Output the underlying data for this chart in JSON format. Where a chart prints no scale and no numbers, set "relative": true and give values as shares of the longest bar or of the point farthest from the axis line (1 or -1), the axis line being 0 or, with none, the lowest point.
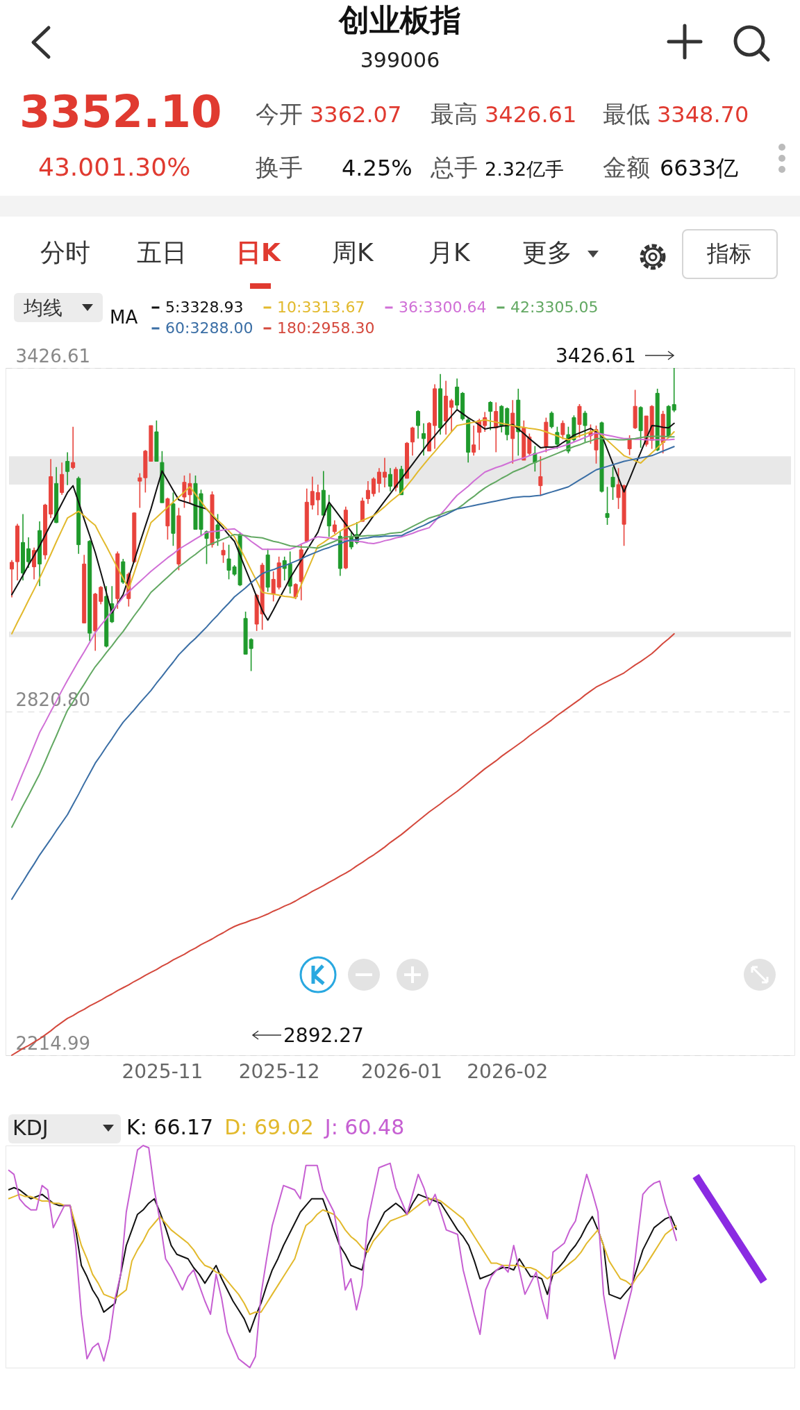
{
  "chart_data": [
    {
      "type": "candlestick",
      "title": "创业板指",
      "subtitle": "399006",
      "legend_title": "MA",
      "legend": "top left",
      "grid": "y",
      "categories": [
        null,
        null,
        null,
        null,
        null,
        null,
        null,
        null,
        null,
        null,
        null,
        null,
        null,
        null,
        null,
        null,
        null,
        null,
        null,
        null,
        null,
        null,
        null,
        null,
        null,
        null,
        null,
        "2025-11",
        null,
        null,
        null,
        null,
        null,
        null,
        null,
        null,
        null,
        null,
        null,
        null,
        null,
        null,
        null,
        null,
        null,
        null,
        null,
        null,
        "2025-12",
        null,
        null,
        null,
        null,
        null,
        null,
        null,
        null,
        null,
        null,
        null,
        null,
        null,
        null,
        null,
        null,
        null,
        null,
        null,
        null,
        null,
        "2026-01",
        null,
        null,
        null,
        null,
        null,
        null,
        null,
        null,
        null,
        null,
        null,
        null,
        null,
        null,
        null,
        null,
        null,
        null,
        "2026-02",
        null,
        null,
        null,
        null,
        null,
        null,
        null,
        null,
        null,
        null,
        null,
        null,
        null,
        null,
        null,
        null,
        null,
        null,
        null,
        null,
        null,
        null,
        null,
        null,
        null,
        null,
        null,
        null,
        null,
        null
      ],
      "ylim": [
        2214.99,
        3426.61
      ],
      "yticks": [
        2214.99,
        {
          "value": 2820.8,
          "label": "2820.80"
        },
        3426.61
      ],
      "ohlc": [
        [
          3072,
          3088,
          3022,
          3084
        ],
        [
          3085,
          3152,
          3052,
          3148
        ],
        [
          3119,
          3169,
          3052,
          3065
        ],
        [
          3108,
          3128,
          3074,
          3085
        ],
        [
          3076,
          3110,
          3054,
          3105
        ],
        [
          3140,
          3156,
          3042,
          3081
        ],
        [
          3097,
          3187,
          3089,
          3185
        ],
        [
          3169,
          3266,
          3162,
          3235
        ],
        [
          3223,
          3252,
          3153,
          3154
        ],
        [
          3207,
          3260,
          3203,
          3239
        ],
        [
          3262,
          3278,
          3220,
          3244
        ],
        [
          3251,
          3323,
          3248,
          3260
        ],
        [
          3232,
          3235,
          3099,
          3115
        ],
        [
          2977,
          3097,
          2977,
          3081
        ],
        [
          3121,
          3123,
          2945,
          2959
        ],
        [
          2963,
          3030,
          2928,
          3028
        ],
        [
          3015,
          3042,
          3010,
          3040
        ],
        [
          3024,
          3042,
          2934,
          2936
        ],
        [
          3011,
          3042,
          2977,
          2979
        ],
        [
          3020,
          3103,
          3002,
          3099
        ],
        [
          3085,
          3090,
          3046,
          3049
        ],
        [
          3020,
          3066,
          3006,
          3063
        ],
        [
          3085,
          3172,
          3083,
          3171
        ],
        [
          3227,
          3241,
          3180,
          3233
        ],
        [
          3233,
          3282,
          3207,
          3280
        ],
        [
          3262,
          3325,
          3262,
          3325
        ],
        [
          3314,
          3334,
          3262,
          3262
        ],
        [
          3260,
          3280,
          3189,
          3189
        ],
        [
          3148,
          3198,
          3124,
          3196
        ],
        [
          3187,
          3207,
          3113,
          3135
        ],
        [
          3081,
          3180,
          3070,
          3166
        ],
        [
          3199,
          3237,
          3180,
          3225
        ],
        [
          3203,
          3241,
          3187,
          3223
        ],
        [
          3223,
          3237,
          3142,
          3142
        ],
        [
          3205,
          3212,
          3131,
          3142
        ],
        [
          3138,
          3140,
          3081,
          3126
        ],
        [
          3115,
          3209,
          3110,
          3203
        ],
        [
          3150,
          3169,
          3113,
          3126
        ],
        [
          3097,
          3119,
          3083,
          3105
        ],
        [
          3090,
          3115,
          3054,
          3070
        ],
        [
          3076,
          3079,
          3060,
          3063
        ],
        [
          3133,
          3137,
          3042,
          3044
        ],
        [
          2985,
          2997,
          2922,
          2922
        ],
        [
          2948,
          2950,
          2892.27,
          2932
        ],
        [
          2975,
          3028,
          2963,
          3026
        ],
        [
          2993,
          3083,
          2965,
          3079
        ],
        [
          3097,
          3108,
          3032,
          3040
        ],
        [
          3028,
          3068,
          3015,
          3054
        ],
        [
          3040,
          3094,
          3036,
          3083
        ],
        [
          3087,
          3094,
          3052,
          3073
        ],
        [
          3081,
          3103,
          3029,
          3042
        ],
        [
          3023,
          3047,
          3019,
          3045
        ],
        [
          3050,
          3115,
          3017,
          3106
        ],
        [
          3121,
          3214,
          3119,
          3190
        ],
        [
          3185,
          3235,
          3177,
          3209
        ],
        [
          3194,
          3221,
          3167,
          3207
        ],
        [
          3211,
          3245,
          3167,
          3167
        ],
        [
          3185,
          3203,
          3129,
          3148
        ],
        [
          3138,
          3158,
          3134,
          3150
        ],
        [
          3130,
          3140,
          3060,
          3073
        ],
        [
          3074,
          3182,
          3072,
          3176
        ],
        [
          3130,
          3138,
          3107,
          3111
        ],
        [
          3133,
          3155,
          3116,
          3119
        ],
        [
          3156,
          3198,
          3156,
          3192
        ],
        [
          3196,
          3227,
          3187,
          3211
        ],
        [
          3205,
          3234,
          3200,
          3231
        ],
        [
          3223,
          3250,
          3207,
          3243
        ],
        [
          3234,
          3268,
          3216,
          3243
        ],
        [
          3239,
          3250,
          3209,
          3218
        ],
        [
          3216,
          3252,
          3209,
          3248
        ],
        [
          3248,
          3254,
          3203,
          3203
        ],
        [
          3232,
          3296,
          3232,
          3294
        ],
        [
          3296,
          3323,
          3272,
          3321
        ],
        [
          3350,
          3352,
          3302,
          3325
        ],
        [
          3311,
          3329,
          3272,
          3302
        ],
        [
          3280,
          3331,
          3280,
          3329
        ],
        [
          3325,
          3398,
          3284,
          3390
        ],
        [
          3390,
          3416,
          3309,
          3321
        ],
        [
          3333,
          3404,
          3309,
          3377
        ],
        [
          3357,
          3372,
          3313,
          3369
        ],
        [
          3393,
          3408,
          3354,
          3361
        ],
        [
          3382,
          3384,
          3334,
          3337
        ],
        [
          3335,
          3339,
          3260,
          3278
        ],
        [
          3278,
          3325,
          3272,
          3291
        ],
        [
          3313,
          3337,
          3282,
          3334
        ],
        [
          3325,
          3349,
          3314,
          3339
        ],
        [
          3366,
          3368,
          3317,
          3350
        ],
        [
          3321,
          3366,
          3278,
          3350
        ],
        [
          3359,
          3361,
          3313,
          3325
        ],
        [
          3355,
          3357,
          3299,
          3309
        ],
        [
          3302,
          3370,
          3258,
          3347
        ],
        [
          3370,
          3390,
          3272,
          3314
        ],
        [
          3264,
          3334,
          3264,
          3321
        ],
        [
          3276,
          3311,
          3273,
          3305
        ],
        [
          3276,
          3289,
          3244,
          3260
        ],
        [
          3219,
          3271,
          3201,
          3235
        ],
        [
          3288,
          3339,
          3278,
          3331
        ],
        [
          3347,
          3350,
          3320,
          3323
        ],
        [
          3313,
          3323,
          3284,
          3292
        ],
        [
          3309,
          3334,
          3301,
          3329
        ],
        [
          3309,
          3323,
          3276,
          3280
        ],
        [
          3339,
          3343,
          3296,
          3300
        ],
        [
          3327,
          3363,
          3304,
          3359
        ],
        [
          3347,
          3351,
          3296,
          3325
        ],
        [
          3307,
          3327,
          3293,
          3314
        ],
        [
          3282,
          3325,
          3258,
          3318
        ],
        [
          3330,
          3332,
          3207,
          3209
        ],
        [
          3170,
          3217,
          3150,
          3163
        ],
        [
          3234,
          3252,
          3194,
          3217
        ],
        [
          3198,
          3250,
          3178,
          3221
        ],
        [
          3151,
          3221,
          3113,
          3219
        ],
        [
          3284,
          3308,
          3273,
          3302
        ],
        [
          3321,
          3388,
          3319,
          3359
        ],
        [
          3357,
          3359,
          3286,
          3316
        ],
        [
          3292,
          3342,
          3288,
          3342
        ],
        [
          3299,
          3361,
          3284,
          3359
        ],
        [
          3382,
          3390,
          3280,
          3282
        ],
        [
          3295,
          3351,
          3276,
          3345
        ],
        [
          3359,
          3361,
          3304,
          3306
        ],
        [
          3362.07,
          3426.61,
          3348.7,
          3352.1
        ]
      ],
      "series": [
        {
          "name": "5:3328.93",
          "color": "#111111",
          "type": "line",
          "values": [
            3027,
            3044,
            3061,
            3079,
            3096,
            3113,
            3132,
            3151,
            3169,
            3188,
            3207,
            3219,
            3190,
            3160,
            3131,
            3101,
            3066,
            3030,
            2995,
            3011,
            3027,
            3057,
            3087,
            3118,
            3148,
            3178,
            3212,
            3245,
            3228,
            3211,
            3194,
            3191,
            3188,
            3184,
            3181,
            3178,
            3167,
            3155,
            3144,
            3132,
            3121,
            3097,
            3072,
            3048,
            3023,
            2999,
            2982,
            3000,
            3019,
            3037,
            3056,
            3072,
            3088,
            3105,
            3121,
            3137,
            3164,
            3190,
            3177,
            3164,
            3151,
            3138,
            3125,
            3139,
            3152,
            3166,
            3179,
            3192,
            3205,
            3218,
            3231,
            3244,
            3257,
            3270,
            3283,
            3296,
            3307,
            3319,
            3330,
            3342,
            3353,
            3346,
            3339,
            3333,
            3326,
            3319,
            3321,
            3322,
            3324,
            3325,
            3327,
            3319,
            3311,
            3302,
            3294,
            3286,
            3287,
            3287,
            3288,
            3295,
            3301,
            3308,
            3312,
            3316,
            3320,
            3314,
            3308,
            3283,
            3258,
            3233,
            3208,
            3231,
            3255,
            3278,
            3302,
            3325,
            3324,
            3322,
            3321,
            3329
          ]
        },
        {
          "name": "10:3313.67",
          "color": "#e2b92c",
          "type": "line",
          "values": [
            2958,
            2978,
            2997,
            3017,
            3036,
            3056,
            3077,
            3098,
            3120,
            3141,
            3162,
            3168,
            3174,
            3166,
            3157,
            3149,
            3130,
            3112,
            3093,
            3074,
            3056,
            3037,
            3066,
            3095,
            3125,
            3154,
            3163,
            3172,
            3181,
            3190,
            3199,
            3208,
            3217,
            3204,
            3191,
            3178,
            3168,
            3158,
            3149,
            3139,
            3129,
            3109,
            3090,
            3070,
            3051,
            3031,
            3029,
            3028,
            3026,
            3024,
            3023,
            3021,
            3044,
            3067,
            3090,
            3113,
            3119,
            3126,
            3132,
            3139,
            3145,
            3149,
            3153,
            3158,
            3162,
            3166,
            3174,
            3182,
            3191,
            3199,
            3207,
            3219,
            3231,
            3244,
            3256,
            3268,
            3279,
            3291,
            3302,
            3314,
            3325,
            3327,
            3329,
            3331,
            3333,
            3335,
            3333,
            3331,
            3329,
            3327,
            3325,
            3323,
            3322,
            3320,
            3319,
            3317,
            3314,
            3310,
            3307,
            3303,
            3300,
            3303,
            3307,
            3310,
            3314,
            3317,
            3308,
            3299,
            3290,
            3281,
            3272,
            3268,
            3263,
            3259,
            3268,
            3277,
            3286,
            3295,
            3304,
            3314
          ]
        },
        {
          "name": "36:3300.64",
          "color": "#d06fd6",
          "type": "line",
          "values": [
            2665,
            2689,
            2713,
            2736,
            2760,
            2784,
            2802,
            2821,
            2839,
            2858,
            2876,
            2893,
            2910,
            2926,
            2943,
            2960,
            2973,
            2985,
            2998,
            3010,
            3023,
            3032,
            3041,
            3050,
            3059,
            3068,
            3076,
            3084,
            3092,
            3099,
            3107,
            3113,
            3119,
            3125,
            3131,
            3137,
            3138,
            3139,
            3141,
            3142,
            3143,
            3136,
            3129,
            3121,
            3114,
            3107,
            3107,
            3107,
            3107,
            3107,
            3107,
            3111,
            3116,
            3120,
            3125,
            3129,
            3128,
            3127,
            3125,
            3124,
            3123,
            3122,
            3121,
            3120,
            3118,
            3117,
            3119,
            3122,
            3124,
            3127,
            3129,
            3132,
            3135,
            3139,
            3142,
            3145,
            3156,
            3168,
            3179,
            3191,
            3202,
            3210,
            3218,
            3227,
            3235,
            3243,
            3247,
            3251,
            3254,
            3258,
            3262,
            3265,
            3268,
            3272,
            3275,
            3278,
            3281,
            3284,
            3286,
            3289,
            3292,
            3296,
            3300,
            3304,
            3308,
            3312,
            3310,
            3308,
            3306,
            3304,
            3302,
            3302,
            3301,
            3301,
            3300,
            3300,
            3300,
            3300,
            3300,
            3301
          ]
        },
        {
          "name": "42:3305.05",
          "color": "#62a862",
          "type": "line",
          "values": [
            2617,
            2636,
            2655,
            2673,
            2692,
            2711,
            2733,
            2756,
            2778,
            2801,
            2823,
            2838,
            2854,
            2869,
            2885,
            2900,
            2912,
            2925,
            2937,
            2950,
            2962,
            2976,
            2990,
            3003,
            3017,
            3031,
            3040,
            3049,
            3058,
            3067,
            3076,
            3083,
            3091,
            3098,
            3106,
            3113,
            3117,
            3121,
            3125,
            3129,
            3133,
            3132,
            3131,
            3129,
            3128,
            3127,
            3124,
            3121,
            3119,
            3116,
            3113,
            3112,
            3111,
            3111,
            3110,
            3109,
            3113,
            3117,
            3121,
            3125,
            3129,
            3129,
            3130,
            3130,
            3131,
            3131,
            3132,
            3133,
            3135,
            3136,
            3137,
            3142,
            3147,
            3152,
            3157,
            3162,
            3165,
            3168,
            3172,
            3175,
            3178,
            3185,
            3193,
            3200,
            3208,
            3215,
            3221,
            3226,
            3232,
            3237,
            3243,
            3247,
            3251,
            3256,
            3260,
            3264,
            3268,
            3272,
            3276,
            3280,
            3284,
            3288,
            3291,
            3295,
            3298,
            3302,
            3302,
            3301,
            3301,
            3300,
            3300,
            3301,
            3302,
            3304,
            3305,
            3306,
            3306,
            3306,
            3305,
            3305
          ]
        },
        {
          "name": "60:3288.00",
          "color": "#3a6ea5",
          "type": "line",
          "values": [
            2490,
            2506,
            2521,
            2537,
            2552,
            2568,
            2582,
            2596,
            2611,
            2625,
            2639,
            2657,
            2675,
            2694,
            2712,
            2730,
            2744,
            2759,
            2773,
            2788,
            2802,
            2813,
            2824,
            2836,
            2847,
            2858,
            2871,
            2883,
            2896,
            2908,
            2921,
            2931,
            2941,
            2950,
            2960,
            2970,
            2981,
            2991,
            3002,
            3012,
            3023,
            3031,
            3039,
            3048,
            3056,
            3064,
            3068,
            3071,
            3075,
            3078,
            3082,
            3086,
            3090,
            3095,
            3099,
            3103,
            3107,
            3110,
            3114,
            3117,
            3121,
            3123,
            3124,
            3126,
            3127,
            3129,
            3129,
            3130,
            3130,
            3131,
            3131,
            3136,
            3140,
            3145,
            3149,
            3154,
            3159,
            3164,
            3168,
            3173,
            3178,
            3180,
            3182,
            3184,
            3186,
            3188,
            3190,
            3192,
            3194,
            3196,
            3198,
            3199,
            3200,
            3200,
            3201,
            3202,
            3205,
            3208,
            3211,
            3214,
            3217,
            3223,
            3229,
            3235,
            3241,
            3247,
            3250,
            3253,
            3256,
            3259,
            3262,
            3264,
            3266,
            3268,
            3270,
            3272,
            3276,
            3280,
            3284,
            3288
          ]
        },
        {
          "name": "180:2958.30",
          "color": "#d4483c",
          "type": "line",
          "values": [
            2215,
            2221,
            2227,
            2232,
            2238,
            2244,
            2251,
            2258,
            2266,
            2273,
            2280,
            2285,
            2291,
            2296,
            2302,
            2307,
            2312,
            2318,
            2323,
            2329,
            2334,
            2339,
            2345,
            2350,
            2356,
            2361,
            2366,
            2372,
            2377,
            2383,
            2388,
            2393,
            2399,
            2404,
            2410,
            2415,
            2420,
            2426,
            2431,
            2437,
            2442,
            2446,
            2449,
            2453,
            2456,
            2460,
            2464,
            2469,
            2473,
            2478,
            2482,
            2487,
            2493,
            2498,
            2504,
            2509,
            2514,
            2520,
            2525,
            2531,
            2536,
            2542,
            2549,
            2555,
            2562,
            2568,
            2575,
            2582,
            2590,
            2597,
            2604,
            2612,
            2620,
            2628,
            2636,
            2644,
            2651,
            2658,
            2666,
            2673,
            2680,
            2688,
            2696,
            2704,
            2712,
            2720,
            2727,
            2734,
            2742,
            2749,
            2756,
            2763,
            2770,
            2778,
            2785,
            2792,
            2799,
            2806,
            2814,
            2821,
            2828,
            2835,
            2842,
            2850,
            2857,
            2864,
            2869,
            2874,
            2879,
            2884,
            2889,
            2896,
            2903,
            2909,
            2916,
            2923,
            2932,
            2941,
            2949,
            2958
          ]
        }
      ],
      "bands": [
        {
          "axis": "y",
          "from": 3221,
          "to": 3271,
          "color": "#e8e8e8"
        },
        {
          "axis": "y",
          "from": 2952,
          "to": 2962,
          "color": "#e8e8e8"
        }
      ],
      "annotations": [
        "3352.10",
        "43.00",
        "1.30%",
        "今开",
        "3362.07",
        "最高",
        "3426.61",
        "最低",
        "3348.70",
        "换手",
        "4.25%",
        "总手",
        "2.32亿手",
        "金额",
        "6633亿",
        "分时",
        "五日",
        "日K",
        "周K",
        "月K",
        "更多",
        "指标",
        "均线",
        "3426.61",
        "2892.27"
      ]
    },
    {
      "type": "line",
      "title": "KDJ",
      "relative": true,
      "categories": [
        null,
        null,
        null,
        null,
        null,
        null,
        null,
        null,
        null,
        null,
        null,
        null,
        null,
        null,
        null,
        null,
        null,
        null,
        null,
        null,
        null,
        null,
        null,
        null,
        null,
        null,
        null,
        null,
        null,
        null,
        null,
        null,
        null,
        null,
        null,
        null,
        null,
        null,
        null,
        null,
        null,
        null,
        null,
        null,
        null,
        null,
        null,
        null,
        null,
        null,
        null,
        null,
        null,
        null,
        null,
        null,
        null,
        null,
        null,
        null,
        null,
        null,
        null,
        null,
        null,
        null,
        null,
        null,
        null,
        null,
        null,
        null,
        null,
        null,
        null,
        null,
        null,
        null,
        null,
        null,
        null,
        null,
        null,
        null,
        null,
        null,
        null,
        null,
        null,
        null,
        null,
        null,
        null,
        null,
        null,
        null,
        null,
        null,
        null,
        null,
        null,
        null,
        null,
        null,
        null,
        null,
        null,
        null,
        null,
        null,
        null,
        null,
        null,
        null,
        null,
        null,
        null,
        null,
        null,
        null
      ],
      "series": [
        {
          "name": "K: 66.17",
          "color": "#111111",
          "values": [
            0.8,
            0.81,
            0.8,
            0.78,
            0.76,
            0.77,
            0.78,
            0.76,
            0.74,
            0.73,
            0.73,
            0.73,
            0.62,
            0.46,
            0.41,
            0.35,
            0.31,
            0.25,
            0.27,
            0.29,
            0.42,
            0.55,
            0.62,
            0.69,
            0.71,
            0.74,
            0.76,
            0.7,
            0.63,
            0.55,
            0.51,
            0.5,
            0.49,
            0.45,
            0.42,
            0.38,
            0.42,
            0.46,
            0.4,
            0.35,
            0.3,
            0.26,
            0.22,
            0.16,
            0.23,
            0.29,
            0.37,
            0.44,
            0.49,
            0.55,
            0.6,
            0.65,
            0.7,
            0.73,
            0.76,
            0.76,
            0.76,
            0.69,
            0.62,
            0.55,
            0.51,
            0.46,
            0.45,
            0.44,
            0.55,
            0.6,
            0.65,
            0.7,
            0.72,
            0.74,
            0.72,
            0.69,
            0.74,
            0.78,
            0.77,
            0.76,
            0.75,
            0.74,
            0.7,
            0.66,
            0.62,
            0.59,
            0.55,
            0.48,
            0.4,
            0.41,
            0.42,
            0.44,
            0.45,
            0.45,
            0.44,
            0.49,
            0.45,
            0.41,
            0.41,
            0.4,
            0.33,
            0.42,
            0.45,
            0.48,
            0.52,
            0.55,
            0.59,
            0.64,
            0.68,
            0.62,
            0.55,
            0.33,
            0.32,
            0.31,
            0.34,
            0.37,
            0.45,
            0.53,
            0.58,
            0.63,
            0.65,
            0.67,
            0.68,
            0.62
          ]
        },
        {
          "name": "D: 69.02",
          "color": "#e2b92c",
          "values": [
            0.76,
            0.77,
            0.78,
            0.77,
            0.77,
            0.76,
            0.75,
            0.75,
            0.74,
            0.74,
            0.73,
            0.73,
            0.64,
            0.55,
            0.49,
            0.42,
            0.38,
            0.33,
            0.32,
            0.31,
            0.33,
            0.35,
            0.48,
            0.53,
            0.57,
            0.62,
            0.65,
            0.68,
            0.65,
            0.62,
            0.6,
            0.58,
            0.56,
            0.53,
            0.49,
            0.46,
            0.45,
            0.43,
            0.42,
            0.39,
            0.36,
            0.33,
            0.29,
            0.24,
            0.25,
            0.25,
            0.29,
            0.33,
            0.37,
            0.41,
            0.45,
            0.49,
            0.57,
            0.64,
            0.66,
            0.69,
            0.71,
            0.7,
            0.69,
            0.66,
            0.62,
            0.59,
            0.57,
            0.54,
            0.52,
            0.57,
            0.6,
            0.63,
            0.66,
            0.67,
            0.68,
            0.69,
            0.71,
            0.73,
            0.75,
            0.76,
            0.76,
            0.75,
            0.73,
            0.71,
            0.69,
            0.67,
            0.63,
            0.59,
            0.55,
            0.51,
            0.47,
            0.47,
            0.46,
            0.46,
            0.46,
            0.46,
            0.45,
            0.45,
            0.44,
            0.42,
            0.4,
            0.42,
            0.43,
            0.45,
            0.47,
            0.49,
            0.52,
            0.56,
            0.59,
            0.62,
            0.55,
            0.48,
            0.44,
            0.4,
            0.39,
            0.37,
            0.41,
            0.44,
            0.48,
            0.52,
            0.56,
            0.6,
            0.62,
            0.64
          ]
        },
        {
          "name": "J: 60.48",
          "color": "#c65fd2",
          "values": [
            0.89,
            0.87,
            0.76,
            0.73,
            0.71,
            0.71,
            0.82,
            0.8,
            0.63,
            0.68,
            0.73,
            0.73,
            0.55,
            0.24,
            0.04,
            0.09,
            0.11,
            0.03,
            0.13,
            0.31,
            0.42,
            0.7,
            0.84,
            0.98,
            1,
            0.99,
            0.8,
            0.66,
            0.49,
            0.45,
            0.4,
            0.35,
            0.41,
            0.44,
            0.37,
            0.3,
            0.24,
            0.42,
            0.31,
            0.16,
            0.1,
            0.04,
            0.02,
            0,
            0.05,
            0.33,
            0.49,
            0.64,
            0.73,
            0.82,
            0.81,
            0.8,
            0.76,
            0.91,
            0.91,
            0.91,
            0.8,
            0.75,
            0.7,
            0.55,
            0.35,
            0.4,
            0.26,
            0.37,
            0.66,
            0.78,
            0.9,
            0.91,
            0.92,
            0.81,
            0.75,
            0.69,
            0.78,
            0.87,
            0.81,
            0.73,
            0.78,
            0.7,
            0.62,
            0.61,
            0.6,
            0.44,
            0.34,
            0.24,
            0.15,
            0.35,
            0.41,
            0.44,
            0.46,
            0.43,
            0.55,
            0.44,
            0.33,
            0.38,
            0.43,
            0.31,
            0.22,
            0.52,
            0.54,
            0.56,
            0.62,
            0.66,
            0.77,
            0.87,
            0.79,
            0.7,
            0.33,
            0.18,
            0.04,
            0.15,
            0.25,
            0.35,
            0.57,
            0.78,
            0.81,
            0.83,
            0.84,
            0.74,
            0.66,
            0.57
          ]
        }
      ]
    }
  ]
}
